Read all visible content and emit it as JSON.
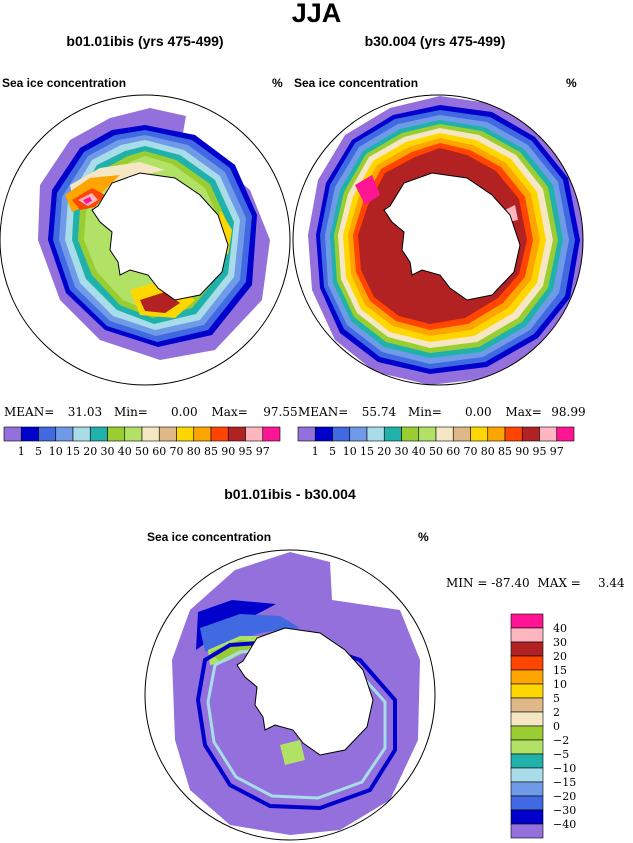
{
  "figure": {
    "title": "JJA"
  },
  "panels": [
    {
      "title": "b01.01ibis (yrs 475-499)",
      "variable": "Sea ice concentration",
      "units": "%",
      "stats": {
        "mean_label": "MEAN=",
        "mean": "31.03",
        "min_label": "Min=",
        "min": "0.00",
        "max_label": "Max=",
        "max": "97.55"
      }
    },
    {
      "title": "b30.004 (yrs 475-499)",
      "variable": "Sea ice concentration",
      "units": "%",
      "stats": {
        "mean_label": "MEAN=",
        "mean": "55.74",
        "min_label": "Min=",
        "min": "0.00",
        "max_label": "Max=",
        "max": "98.99"
      }
    },
    {
      "title": "b01.01ibis - b30.004",
      "variable": "Sea ice concentration",
      "units": "%",
      "stats": {
        "min_label": "MIN =",
        "min": "-87.40",
        "max_label": "MAX =",
        "max": "3.44"
      }
    }
  ],
  "colorbars": {
    "concentration": {
      "ticks": [
        "1",
        "5",
        "10",
        "15",
        "20",
        "30",
        "40",
        "50",
        "60",
        "70",
        "80",
        "85",
        "90",
        "95",
        "97"
      ],
      "colors": [
        "#9370db",
        "#0000cd",
        "#4169e1",
        "#6f9ae8",
        "#a8dce8",
        "#20b2aa",
        "#9acd32",
        "#b2e265",
        "#f5e6c4",
        "#deb887",
        "#ffd700",
        "#ffa500",
        "#ff4500",
        "#b22222",
        "#ffb6c1",
        "#ff1493"
      ]
    },
    "difference": {
      "ticks": [
        "40",
        "30",
        "20",
        "15",
        "10",
        "5",
        "2",
        "0",
        "-2",
        "-5",
        "-10",
        "-15",
        "-20",
        "-30",
        "-40"
      ],
      "colors": [
        "#ff1493",
        "#ffb6c1",
        "#b22222",
        "#ff4500",
        "#ffa500",
        "#ffd700",
        "#deb887",
        "#f5e6c4",
        "#9acd32",
        "#b2e265",
        "#20b2aa",
        "#a8dce8",
        "#6f9ae8",
        "#4169e1",
        "#0000cd",
        "#9370db"
      ]
    }
  },
  "chart_data": [
    {
      "type": "heatmap",
      "title": "b01.01ibis (yrs 475-499)",
      "variable": "Sea ice concentration",
      "units": "%",
      "mean": 31.03,
      "min": 0.0,
      "max": 97.55,
      "levels": [
        1,
        5,
        10,
        15,
        20,
        30,
        40,
        50,
        60,
        70,
        80,
        85,
        90,
        95,
        97
      ]
    },
    {
      "type": "heatmap",
      "title": "b30.004 (yrs 475-499)",
      "variable": "Sea ice concentration",
      "units": "%",
      "mean": 55.74,
      "min": 0.0,
      "max": 98.99,
      "levels": [
        1,
        5,
        10,
        15,
        20,
        30,
        40,
        50,
        60,
        70,
        80,
        85,
        90,
        95,
        97
      ]
    },
    {
      "type": "heatmap",
      "title": "b01.01ibis - b30.004",
      "variable": "Sea ice concentration",
      "units": "%",
      "min": -87.4,
      "max": 3.44,
      "levels": [
        -40,
        -30,
        -20,
        -15,
        -10,
        -5,
        -2,
        0,
        2,
        5,
        10,
        15,
        20,
        30,
        40
      ]
    }
  ]
}
